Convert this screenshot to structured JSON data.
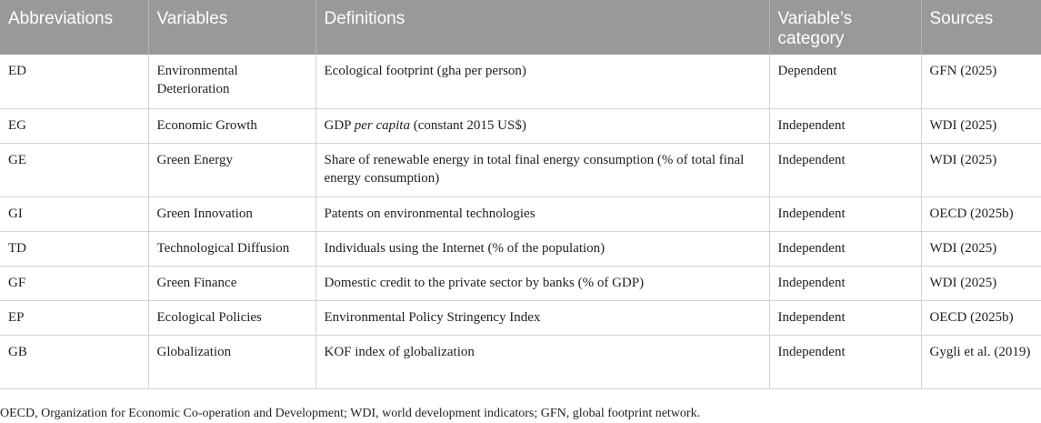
{
  "table": {
    "headers": [
      "Abbreviations",
      "Variables",
      "Definitions",
      "Variable’s category",
      "Sources"
    ],
    "rows": [
      {
        "abbr": "ED",
        "variable": "Environmental Deterioration",
        "definition": "Ecological footprint (gha per person)",
        "category": "Dependent",
        "source": "GFN (2025)"
      },
      {
        "abbr": "EG",
        "variable": "Economic Growth",
        "definition_pre": "GDP ",
        "definition_em": "per capita",
        "definition_post": " (constant 2015 US$)",
        "category": "Independent",
        "source": "WDI (2025)"
      },
      {
        "abbr": "GE",
        "variable": "Green Energy",
        "definition": "Share of renewable energy in total final energy consumption (% of total final energy consumption)",
        "category": "Independent",
        "source": "WDI (2025)"
      },
      {
        "abbr": "GI",
        "variable": "Green Innovation",
        "definition": "Patents on environmental technologies",
        "category": "Independent",
        "source": "OECD (2025b)"
      },
      {
        "abbr": "TD",
        "variable": "Technological Diffusion",
        "definition": "Individuals using the Internet (% of the population)",
        "category": "Independent",
        "source": "WDI (2025)"
      },
      {
        "abbr": "GF",
        "variable": "Green Finance",
        "definition": "Domestic credit to the private sector by banks (% of GDP)",
        "category": "Independent",
        "source": "WDI (2025)"
      },
      {
        "abbr": "EP",
        "variable": "Ecological Policies",
        "definition": "Environmental Policy Stringency Index",
        "category": "Independent",
        "source": "OECD (2025b)"
      },
      {
        "abbr": "GB",
        "variable": "Globalization",
        "definition": "KOF index of globalization",
        "category": "Independent",
        "source": "Gygli et al. (2019)"
      }
    ]
  },
  "footnote": "OECD, Organization for Economic Co-operation and Development; WDI, world development indicators; GFN, global footprint network."
}
